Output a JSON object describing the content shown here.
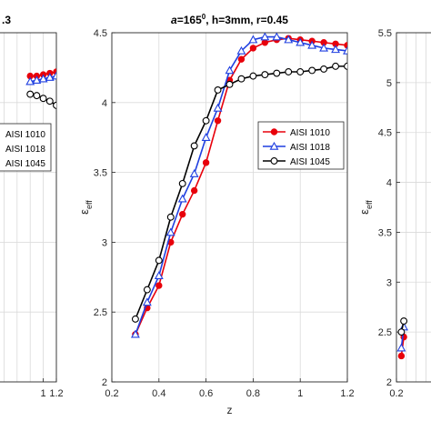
{
  "chart_data": [
    {
      "type": "line",
      "title": ".3",
      "xlabel": "",
      "ylabel": "",
      "xlim": [
        0.2,
        1.2
      ],
      "ylim": [
        2,
        4.5
      ],
      "xticks": [
        "1",
        "1.2"
      ],
      "xtick_values": [
        1.0,
        1.2
      ],
      "yticks": [],
      "ytick_values": [],
      "grid": true,
      "legend": "left",
      "series": [
        {
          "name": "AISI 1010",
          "color": "#e8000b",
          "marker": "circle",
          "x": [
            0.8,
            0.9,
            1.0,
            1.1,
            1.2
          ],
          "y": [
            4.19,
            4.19,
            4.2,
            4.21,
            4.22
          ]
        },
        {
          "name": "AISI 1018",
          "color": "#1f3fe0",
          "marker": "triangle",
          "x": [
            0.8,
            0.9,
            1.0,
            1.1,
            1.2
          ],
          "y": [
            4.15,
            4.16,
            4.17,
            4.18,
            4.19
          ]
        },
        {
          "name": "AISI 1045",
          "color": "#000000",
          "marker": "circle-open",
          "x": [
            0.8,
            0.9,
            1.0,
            1.1,
            1.2
          ],
          "y": [
            4.06,
            4.05,
            4.03,
            4.01,
            3.98
          ]
        }
      ]
    },
    {
      "type": "line",
      "title_parts": [
        "a",
        "=165",
        "0",
        ", h=3mm,  r=0.45"
      ],
      "xlabel": "z",
      "ylabel": "ε",
      "ylabel_sub": "eff",
      "xlim": [
        0.2,
        1.2
      ],
      "ylim": [
        2,
        4.5
      ],
      "xticks": [
        "0.2",
        "0.4",
        "0.6",
        "0.8",
        "1",
        "1.2"
      ],
      "xtick_values": [
        0.2,
        0.4,
        0.6,
        0.8,
        1.0,
        1.2
      ],
      "yticks": [
        "2",
        "2.5",
        "3",
        "3.5",
        "4",
        "4.5"
      ],
      "ytick_values": [
        2,
        2.5,
        3,
        3.5,
        4,
        4.5
      ],
      "grid": true,
      "legend": "right",
      "series": [
        {
          "name": "AISI 1010",
          "color": "#e8000b",
          "marker": "circle",
          "x": [
            0.3,
            0.35,
            0.4,
            0.45,
            0.5,
            0.55,
            0.6,
            0.65,
            0.7,
            0.75,
            0.8,
            0.85,
            0.9,
            0.95,
            1.0,
            1.05,
            1.1,
            1.15,
            1.2
          ],
          "y": [
            2.34,
            2.53,
            2.69,
            3.0,
            3.2,
            3.37,
            3.57,
            3.87,
            4.16,
            4.31,
            4.39,
            4.43,
            4.45,
            4.46,
            4.45,
            4.44,
            4.43,
            4.42,
            4.41
          ]
        },
        {
          "name": "AISI 1018",
          "color": "#1f3fe0",
          "marker": "triangle",
          "x": [
            0.3,
            0.35,
            0.4,
            0.45,
            0.5,
            0.55,
            0.6,
            0.65,
            0.7,
            0.75,
            0.8,
            0.85,
            0.9,
            0.95,
            1.0,
            1.05,
            1.1,
            1.15,
            1.2
          ],
          "y": [
            2.34,
            2.57,
            2.76,
            3.07,
            3.31,
            3.49,
            3.75,
            3.96,
            4.23,
            4.37,
            4.45,
            4.47,
            4.47,
            4.45,
            4.43,
            4.41,
            4.39,
            4.38,
            4.37
          ]
        },
        {
          "name": "AISI 1045",
          "color": "#000000",
          "marker": "circle-open",
          "x": [
            0.3,
            0.35,
            0.4,
            0.45,
            0.5,
            0.55,
            0.6,
            0.65,
            0.7,
            0.75,
            0.8,
            0.85,
            0.9,
            0.95,
            1.0,
            1.05,
            1.1,
            1.15,
            1.2
          ],
          "y": [
            2.45,
            2.66,
            2.87,
            3.18,
            3.42,
            3.69,
            3.87,
            4.09,
            4.13,
            4.17,
            4.19,
            4.2,
            4.21,
            4.22,
            4.22,
            4.23,
            4.24,
            4.26,
            4.26
          ]
        }
      ]
    },
    {
      "type": "line",
      "title": "",
      "xlabel": "",
      "ylabel": "ε",
      "ylabel_sub": "eff",
      "xlim": [
        0.2,
        1.2
      ],
      "ylim": [
        2,
        5.5
      ],
      "xticks": [
        "0.2"
      ],
      "xtick_values": [
        0.2
      ],
      "yticks": [
        "2",
        "2.5",
        "3",
        "3.5",
        "4",
        "4.5",
        "5",
        "5.5"
      ],
      "ytick_values": [
        2,
        2.5,
        3,
        3.5,
        4,
        4.5,
        5,
        5.5
      ],
      "grid": true,
      "series": [
        {
          "name": "AISI 1010",
          "color": "#e8000b",
          "marker": "circle",
          "x": [
            0.3,
            0.35
          ],
          "y": [
            2.26,
            2.45
          ]
        },
        {
          "name": "AISI 1018",
          "color": "#1f3fe0",
          "marker": "triangle",
          "x": [
            0.3,
            0.35
          ],
          "y": [
            2.34,
            2.55
          ]
        },
        {
          "name": "AISI 1045",
          "color": "#000000",
          "marker": "circle-open",
          "x": [
            0.3,
            0.35
          ],
          "y": [
            2.5,
            2.61
          ]
        }
      ]
    }
  ]
}
